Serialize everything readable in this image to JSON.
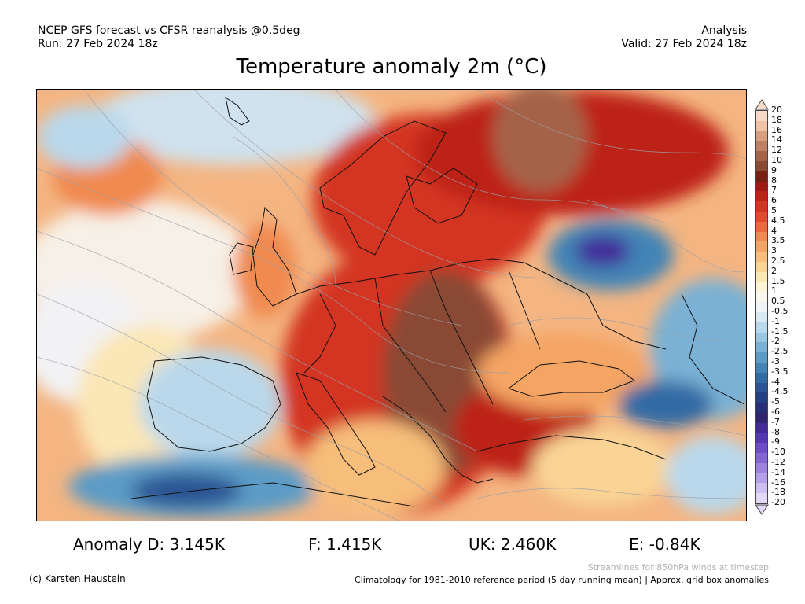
{
  "header": {
    "left_line1": "NCEP GFS forecast vs CFSR reanalysis @0.5deg",
    "left_line2": "Run: 27 Feb 2024 18z",
    "right_line1": "Analysis",
    "right_line2": "Valid: 27 Feb 2024 18z"
  },
  "title": "Temperature anomaly 2m (°C)",
  "colorbar": {
    "labels": [
      "20",
      "18",
      "16",
      "14",
      "12",
      "10",
      "9",
      "8",
      "7",
      "6",
      "5",
      "4.5",
      "4",
      "3.5",
      "3",
      "2.5",
      "2",
      "1.5",
      "1",
      "0.5",
      "-0.5",
      "-1",
      "-1.5",
      "-2",
      "-2.5",
      "-3",
      "-3.5",
      "-4",
      "-4.5",
      "-5",
      "-6",
      "-7",
      "-8",
      "-9",
      "-10",
      "-12",
      "-14",
      "-16",
      "-18",
      "-20"
    ],
    "colors": [
      "#f6d9c9",
      "#efc2a7",
      "#d79f7f",
      "#bf8163",
      "#a4634a",
      "#8a4a35",
      "#7a1d12",
      "#9e1a14",
      "#bd2218",
      "#d33522",
      "#e04a2e",
      "#ea6a3d",
      "#f08a50",
      "#f4a463",
      "#f7bd7a",
      "#f9d495",
      "#fbe6b5",
      "#fdf3d6",
      "#f9f6ee",
      "#f0f3f6",
      "#d8e9f3",
      "#bad8eb",
      "#9ac5e0",
      "#7ab1d4",
      "#5c9bc6",
      "#4384b6",
      "#326ba4",
      "#2a5493",
      "#243f84",
      "#262f77",
      "#30246f",
      "#43299a",
      "#5637b3",
      "#6c4cc7",
      "#8465d6",
      "#9d82e0",
      "#b6a1e8",
      "#cdc0f0",
      "#e2d9f7"
    ]
  },
  "stats": {
    "d": "Anomaly D: 3.145K",
    "f": "F: 1.415K",
    "uk": "UK: 2.460K",
    "e": "E: -0.84K"
  },
  "footer": {
    "streamlines": "Streamlines for 850hPa winds at timestep",
    "climatology": "Climatology for 1981-2010 reference period (5 day running mean) | Approx. grid box anomalies",
    "copyright": "(c) Karsten Haustein"
  }
}
